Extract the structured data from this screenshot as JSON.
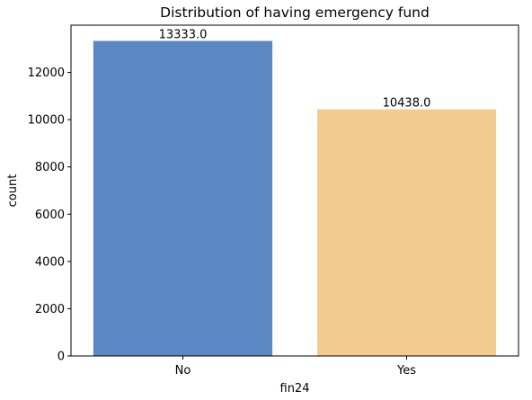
{
  "chart_data": {
    "type": "bar",
    "title": "Distribution of having emergency fund",
    "xlabel": "fin24",
    "ylabel": "count",
    "categories": [
      "No",
      "Yes"
    ],
    "values": [
      13333,
      10438
    ],
    "value_labels": [
      "13333.0",
      "10438.0"
    ],
    "colors": [
      "#5b87c2",
      "#f1cb8f"
    ],
    "ylim": [
      0,
      13999
    ],
    "yticks": [
      0,
      2000,
      4000,
      6000,
      8000,
      10000,
      12000
    ],
    "ytick_labels": [
      "0",
      "2000",
      "4000",
      "6000",
      "8000",
      "10000",
      "12000"
    ],
    "grid": false,
    "legend": "none"
  }
}
